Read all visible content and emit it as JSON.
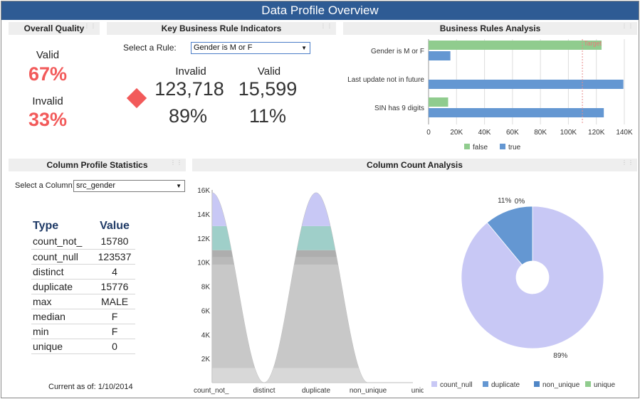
{
  "title": "Data Profile Overview",
  "overall_quality": {
    "header": "Overall Quality",
    "valid_label": "Valid",
    "valid_pct": "67%",
    "invalid_label": "Invalid",
    "invalid_pct": "33%"
  },
  "key_indicators": {
    "header": "Key Business Rule Indicators",
    "select_label": "Select a Rule:",
    "selected_rule": "Gender is M or F",
    "invalid_label": "Invalid",
    "valid_label": "Valid",
    "invalid_count": "123,718",
    "valid_count": "15,599",
    "invalid_pct": "89%",
    "valid_pct": "11%",
    "indicator_icon": "red-diamond-icon",
    "indicator_color": "#f25a5a"
  },
  "rules_analysis": {
    "header": "Business Rules Analysis",
    "chart_data": {
      "type": "bar",
      "orientation": "horizontal",
      "categories": [
        "Gender is M or F",
        "Last update not in future",
        "SIN has 9 digits"
      ],
      "series": [
        {
          "name": "false",
          "color": "#90cc8e",
          "values": [
            123718,
            0,
            14000
          ]
        },
        {
          "name": "true",
          "color": "#6497d2",
          "values": [
            15599,
            139317,
            125317
          ]
        }
      ],
      "xticks": [
        "0",
        "20K",
        "40K",
        "60K",
        "80K",
        "100K",
        "120K",
        "140K"
      ],
      "xlim": [
        0,
        140000
      ],
      "reference_line": {
        "label": "Target",
        "value": 110000,
        "color": "#e88a8a"
      },
      "legend_position": "bottom",
      "grid": true
    }
  },
  "column_stats": {
    "header": "Column Profile Statistics",
    "select_label": "Select a Column:",
    "selected_column": "src_gender",
    "col_type": "Type",
    "col_value": "Value",
    "rows": [
      {
        "type": "count_not_",
        "value": "15780"
      },
      {
        "type": "count_null",
        "value": "123537"
      },
      {
        "type": "distinct",
        "value": "4"
      },
      {
        "type": "duplicate",
        "value": "15776"
      },
      {
        "type": "max",
        "value": "MALE"
      },
      {
        "type": "median",
        "value": "F"
      },
      {
        "type": "min",
        "value": "F"
      },
      {
        "type": "unique",
        "value": "0"
      }
    ],
    "footer": "Current as of: 1/10/2014"
  },
  "count_analysis": {
    "header": "Column Count Analysis",
    "area_chart": {
      "type": "area",
      "categories": [
        "count_not_",
        "distinct",
        "duplicate",
        "non_unique",
        "uniqu"
      ],
      "yticks": [
        "",
        "2K",
        "4K",
        "6K",
        "8K",
        "10K",
        "12K",
        "14K",
        "16K"
      ],
      "ylim": [
        0,
        16000
      ],
      "peaks": [
        15780,
        4,
        15776,
        0,
        0
      ]
    },
    "pie_chart": {
      "type": "pie",
      "slices": [
        {
          "name": "count_null",
          "value": 89,
          "label": "89%",
          "color": "#c8c8f5"
        },
        {
          "name": "duplicate",
          "value": 11,
          "label": "11%",
          "color": "#6497d2"
        },
        {
          "name": "non_unique",
          "value": 0,
          "label": "0%",
          "color": "#4f86c6"
        },
        {
          "name": "unique",
          "value": 0,
          "label": "",
          "color": "#90cc8e"
        }
      ],
      "legend": [
        "count_null",
        "duplicate",
        "non_unique",
        "unique"
      ],
      "legend_position": "bottom"
    }
  },
  "grip_icon": "drag-grip-icon"
}
